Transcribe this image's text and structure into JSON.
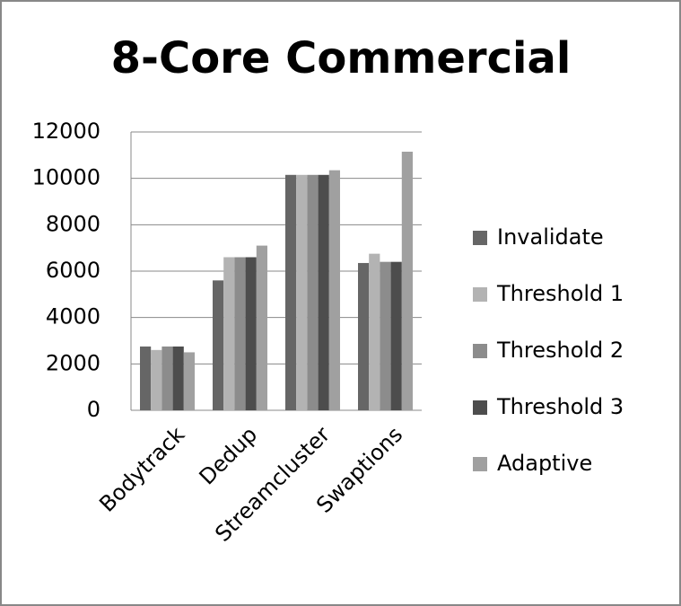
{
  "chart_data": {
    "type": "bar",
    "title": "8-Core Commercial",
    "categories": [
      "Bodytrack",
      "Dedup",
      "Streamcluster",
      "Swaptions"
    ],
    "series": [
      {
        "name": "Invalidate",
        "color": "#666666",
        "values": [
          2750,
          5600,
          10150,
          6350
        ]
      },
      {
        "name": "Threshold 1",
        "color": "#b3b3b3",
        "values": [
          2600,
          6600,
          10150,
          6750
        ]
      },
      {
        "name": "Threshold 2",
        "color": "#8c8c8c",
        "values": [
          2750,
          6600,
          10150,
          6400
        ]
      },
      {
        "name": "Threshold 3",
        "color": "#4d4d4d",
        "values": [
          2750,
          6600,
          10150,
          6400
        ]
      },
      {
        "name": "Adaptive",
        "color": "#a0a0a0",
        "values": [
          2500,
          7100,
          10350,
          11150
        ]
      }
    ],
    "ylim": [
      0,
      12000
    ],
    "yticks": [
      0,
      2000,
      4000,
      6000,
      8000,
      10000,
      12000
    ],
    "grid": true,
    "legend": "right"
  }
}
